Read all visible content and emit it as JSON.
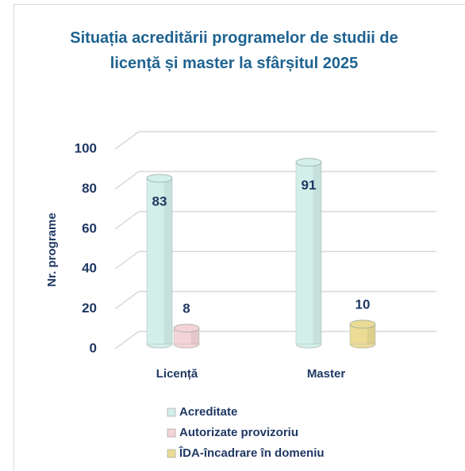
{
  "chart_data": {
    "type": "bar3d",
    "title": "Situația acreditării programelor de studii de licență și master la sfârșitul 2025",
    "y_label": "Nr. programe",
    "categories": [
      "Licență",
      "Master"
    ],
    "series": [
      {
        "name": "Acreditate",
        "color": "#d3efea",
        "values": [
          83,
          91
        ]
      },
      {
        "name": "Autorizate provizoriu",
        "color": "#f4d3d6",
        "values": [
          8,
          null
        ]
      },
      {
        "name": "ÎDA-încadrare în domeniu",
        "color": "#ebdb95",
        "values": [
          null,
          10
        ]
      }
    ],
    "ylim": [
      0,
      100
    ],
    "yticks": [
      0,
      20,
      40,
      60,
      80,
      100
    ],
    "grid": true,
    "legend": "bottom"
  }
}
